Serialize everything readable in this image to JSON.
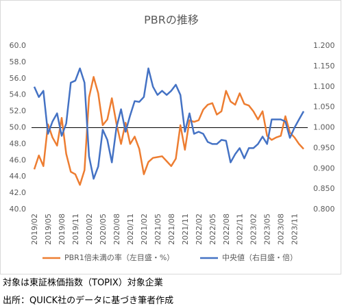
{
  "chart_data": {
    "type": "line",
    "title": "PBRの推移",
    "categories": [
      "2019/02",
      null,
      null,
      "2019/05",
      null,
      null,
      "2019/08",
      null,
      null,
      "2019/11",
      null,
      null,
      "2020/02",
      null,
      null,
      "2020/05",
      null,
      null,
      "2020/08",
      null,
      null,
      "2020/11",
      null,
      null,
      "2021/02",
      null,
      null,
      "2021/05",
      null,
      null,
      "2021/08",
      null,
      null,
      "2021/11",
      null,
      null,
      "2022/02",
      null,
      null,
      "2022/05",
      null,
      null,
      "2022/08",
      null,
      null,
      "2022/11",
      null,
      null,
      "2023/02",
      null,
      null,
      "2023/05",
      null,
      null,
      "2023/08",
      null,
      null,
      "2023/11",
      null,
      null
    ],
    "series": [
      {
        "name": "PBR1倍未満の率（左目盛・%）",
        "color": "#ED7D31",
        "axis": "y",
        "values": [
          44.9,
          46.6,
          45.3,
          50.4,
          48.8,
          47.8,
          51.2,
          46.8,
          44.6,
          44.3,
          43.0,
          44.8,
          53.7,
          56.2,
          54.2,
          50.3,
          51.0,
          53.6,
          50.5,
          48.0,
          50.6,
          48.0,
          48.9,
          47.4,
          44.3,
          45.8,
          46.3,
          46.4,
          46.5,
          45.9,
          45.3,
          46.2,
          50.3,
          47.3,
          50.9,
          50.7,
          50.9,
          52.2,
          52.8,
          53.0,
          51.6,
          52.0,
          54.5,
          53.2,
          52.8,
          54.2,
          52.9,
          52.7,
          52.0,
          51.0,
          52.0,
          49.0,
          48.5,
          48.8,
          49.0,
          51.4,
          49.4,
          48.8,
          48.0,
          47.4
        ]
      },
      {
        "name": "中央値（右目盛・倍）",
        "color": "#4472C4",
        "axis": "y2",
        "values": [
          1.1,
          1.075,
          1.09,
          0.985,
          1.015,
          1.035,
          0.98,
          1.01,
          1.11,
          1.115,
          1.145,
          1.11,
          0.93,
          0.875,
          0.905,
          0.995,
          0.97,
          0.915,
          1.0,
          1.045,
          0.99,
          1.03,
          1.065,
          1.063,
          1.075,
          1.145,
          1.1,
          1.08,
          1.09,
          1.08,
          1.09,
          1.105,
          1.08,
          0.99,
          1.035,
          0.985,
          0.99,
          0.985,
          0.965,
          0.96,
          0.96,
          0.97,
          0.968,
          0.915,
          0.935,
          0.95,
          0.925,
          0.95,
          0.95,
          0.96,
          0.978,
          0.96,
          1.02,
          1.02,
          1.02,
          1.015,
          0.975,
          1.0,
          1.02,
          1.04
        ]
      }
    ],
    "ylim": [
      40,
      60
    ],
    "yticks": [
      {
        "value": 40,
        "label": "40.0"
      },
      {
        "value": 42,
        "label": "42.0"
      },
      {
        "value": 44,
        "label": "44.0"
      },
      {
        "value": 46,
        "label": "46.0"
      },
      {
        "value": 48,
        "label": "48.0"
      },
      {
        "value": 50,
        "label": "50.0"
      },
      {
        "value": 52,
        "label": "52.0"
      },
      {
        "value": 54,
        "label": "54.0"
      },
      {
        "value": 56,
        "label": "56.0"
      },
      {
        "value": 58,
        "label": "58.0"
      },
      {
        "value": 60,
        "label": "60.0"
      }
    ],
    "y2lim": [
      0.8,
      1.2
    ],
    "y2ticks": [
      {
        "value": 0.8,
        "label": "0.800"
      },
      {
        "value": 0.85,
        "label": "0.850"
      },
      {
        "value": 0.9,
        "label": "0.900"
      },
      {
        "value": 0.95,
        "label": "0.950"
      },
      {
        "value": 1.0,
        "label": "1.000"
      },
      {
        "value": 1.05,
        "label": "1.050"
      },
      {
        "value": 1.1,
        "label": "1.100"
      },
      {
        "value": 1.15,
        "label": "1.150"
      },
      {
        "value": 1.2,
        "label": "1.200"
      }
    ],
    "hline": 50,
    "legend": "bottom"
  },
  "notes": [
    "対象は東証株価指数（TOPIX）対象企業",
    "出所：QUICK社のデータに基づき筆者作成"
  ]
}
